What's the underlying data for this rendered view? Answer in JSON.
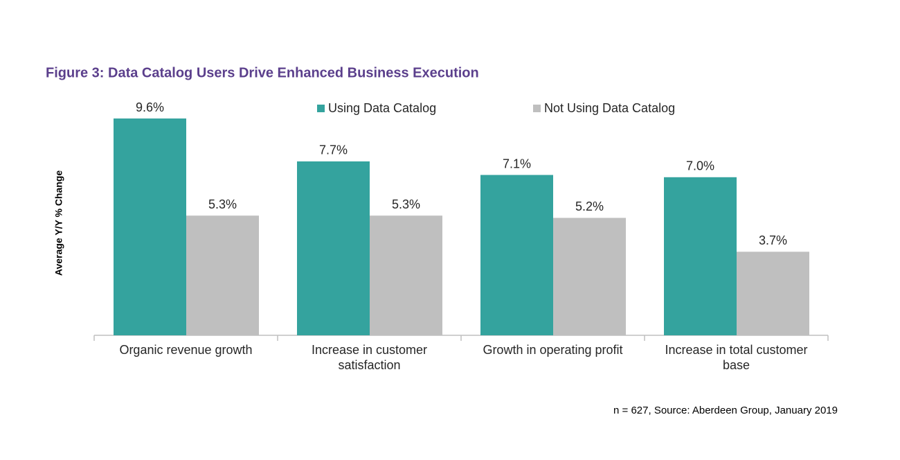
{
  "chart_data": {
    "type": "bar",
    "title": "Figure 3: Data Catalog Users Drive Enhanced Business Execution",
    "y_label": "Average Y/Y % Change",
    "categories": [
      "Organic revenue growth",
      "Increase in customer satisfaction",
      "Growth in operating profit",
      "Increase in total customer base"
    ],
    "series": [
      {
        "name": "Using Data Catalog",
        "color": "#34a39e",
        "values": [
          9.6,
          7.7,
          7.1,
          7.0
        ],
        "value_labels": [
          "9.6%",
          "7.7%",
          "7.1%",
          "7.0%"
        ]
      },
      {
        "name": "Not Using Data Catalog",
        "color": "#bfbfbf",
        "values": [
          5.3,
          5.3,
          5.2,
          3.7
        ],
        "value_labels": [
          "5.3%",
          "5.3%",
          "5.2%",
          "3.7%"
        ]
      }
    ],
    "ylim": [
      0,
      10
    ],
    "legend": "top",
    "source": "n = 627, Source: Aberdeen Group, January 2019"
  }
}
